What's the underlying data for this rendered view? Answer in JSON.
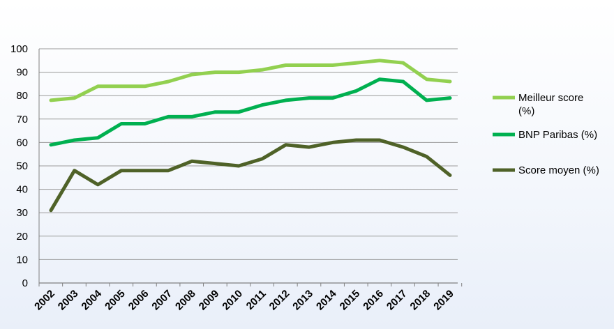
{
  "chart_data": {
    "type": "line",
    "x": [
      "2002",
      "2003",
      "2004",
      "2005",
      "2006",
      "2007",
      "2008",
      "2009",
      "2010",
      "2011",
      "2012",
      "2013",
      "2014",
      "2015",
      "2016",
      "2017",
      "2018",
      "2019"
    ],
    "ylim": [
      0,
      100
    ],
    "yticks": [
      "0",
      "10",
      "20",
      "30",
      "40",
      "50",
      "60",
      "70",
      "80",
      "90",
      "100"
    ],
    "grid": true,
    "legend_position": "right",
    "series": [
      {
        "name": "Meilleur score (%)",
        "legend_lines": [
          "Meilleur score",
          "(%)"
        ],
        "color": "#92d050",
        "values": [
          78,
          79,
          84,
          84,
          84,
          86,
          89,
          90,
          90,
          91,
          93,
          93,
          93,
          94,
          95,
          94,
          87,
          86
        ]
      },
      {
        "name": "BNP Paribas (%)",
        "legend_lines": [
          "BNP Paribas (%)"
        ],
        "color": "#00b050",
        "values": [
          59,
          61,
          62,
          68,
          68,
          71,
          71,
          73,
          73,
          76,
          78,
          79,
          79,
          82,
          87,
          86,
          78,
          79
        ]
      },
      {
        "name": "Score moyen (%)",
        "legend_lines": [
          "Score moyen (%)"
        ],
        "color": "#4f6228",
        "values": [
          31,
          48,
          42,
          48,
          48,
          48,
          52,
          51,
          50,
          53,
          59,
          58,
          60,
          61,
          61,
          58,
          54,
          46
        ]
      }
    ]
  }
}
